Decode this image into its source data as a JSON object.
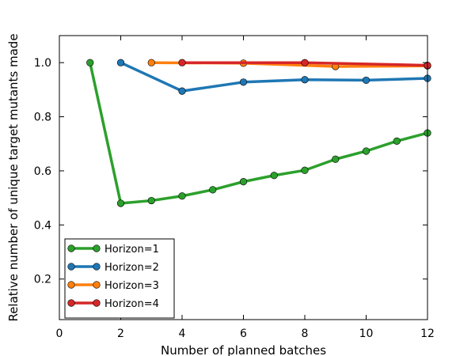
{
  "chart_data": {
    "type": "line",
    "title": "",
    "xlabel": "Number of planned batches",
    "ylabel": "Relative number of unique target mutants made",
    "xlim": [
      0,
      12
    ],
    "ylim": [
      0.05,
      1.1
    ],
    "xticks": [
      0,
      2,
      4,
      6,
      8,
      10,
      12
    ],
    "yticks": [
      0.2,
      0.4,
      0.6,
      0.8,
      1.0
    ],
    "xtick_labels": [
      "0",
      "2",
      "4",
      "6",
      "8",
      "10",
      "12"
    ],
    "ytick_labels": [
      "0.2",
      "0.4",
      "0.6",
      "0.8",
      "1.0"
    ],
    "grid": false,
    "legend_position": "lower-left",
    "series": [
      {
        "name": "Horizon=1",
        "color": "#2ca02c",
        "x": [
          1,
          2,
          3,
          4,
          5,
          6,
          7,
          8,
          9,
          10,
          11,
          12
        ],
        "y": [
          1.0,
          0.48,
          0.49,
          0.507,
          0.53,
          0.56,
          0.583,
          0.602,
          0.643,
          0.673,
          0.71,
          0.74
        ]
      },
      {
        "name": "Horizon=2",
        "color": "#1f77b4",
        "x": [
          2,
          4,
          6,
          8,
          10,
          12
        ],
        "y": [
          1.0,
          0.895,
          0.928,
          0.937,
          0.935,
          0.942
        ]
      },
      {
        "name": "Horizon=3",
        "color": "#ff7f0e",
        "x": [
          3,
          6,
          9,
          12
        ],
        "y": [
          1.0,
          0.998,
          0.986,
          0.988
        ]
      },
      {
        "name": "Horizon=4",
        "color": "#d62728",
        "x": [
          4,
          8,
          12
        ],
        "y": [
          1.0,
          1.0,
          0.99
        ]
      }
    ]
  }
}
